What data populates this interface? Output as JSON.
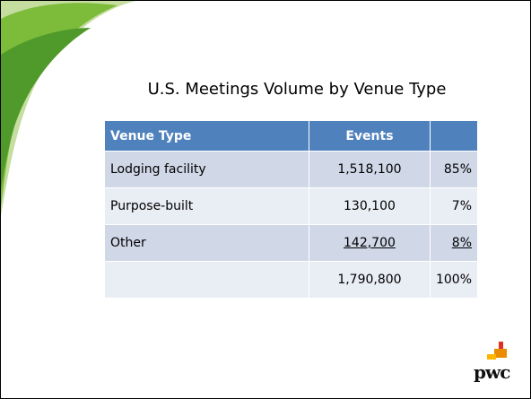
{
  "slide": {
    "title": "U.S. Meetings Volume by Venue Type",
    "table": {
      "header": {
        "label": "Venue Type",
        "events": "Events"
      },
      "rows": [
        {
          "label": "Lodging facility",
          "events": "1,518,100",
          "share": "85%"
        },
        {
          "label": "Purpose-built",
          "events": "130,100",
          "share": "7%"
        },
        {
          "label": "Other",
          "events": "142,700",
          "share": "8%"
        },
        {
          "events": "1,790,800",
          "share": "100%"
        }
      ]
    },
    "logo": "pwc"
  }
}
